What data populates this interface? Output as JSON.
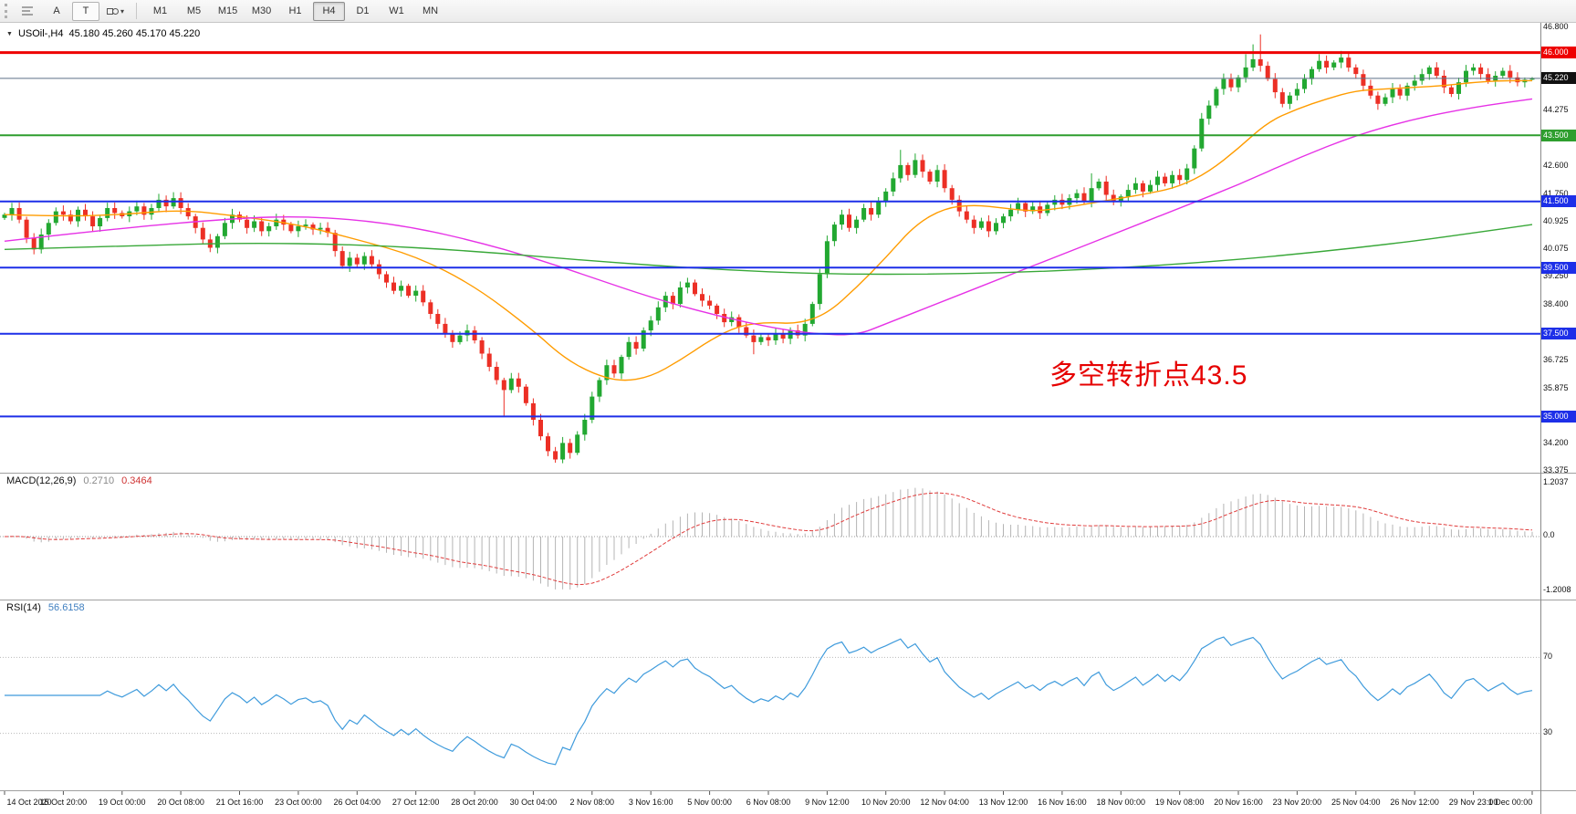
{
  "toolbar": {
    "text_tool_label": "A",
    "text_label_tool_label": "T",
    "timeframes": [
      {
        "label": "M1",
        "active": false
      },
      {
        "label": "M5",
        "active": false
      },
      {
        "label": "M15",
        "active": false
      },
      {
        "label": "M30",
        "active": false
      },
      {
        "label": "H1",
        "active": false
      },
      {
        "label": "H4",
        "active": true
      },
      {
        "label": "D1",
        "active": false
      },
      {
        "label": "W1",
        "active": false
      },
      {
        "label": "MN",
        "active": false
      }
    ]
  },
  "chart": {
    "symbol_tf": "USOil-,H4",
    "ohlc_text": "45.180 45.260 45.170 45.220",
    "annotation": {
      "text": "多空转折点43.5",
      "color": "#e60000"
    },
    "axis_ticks": [
      {
        "v": 46.8,
        "t": "46.800"
      },
      {
        "v": 44.275,
        "t": "44.275"
      },
      {
        "v": 42.6,
        "t": "42.600"
      },
      {
        "v": 41.75,
        "t": "41.750"
      },
      {
        "v": 40.925,
        "t": "40.925"
      },
      {
        "v": 40.075,
        "t": "40.075"
      },
      {
        "v": 39.25,
        "t": "39.250"
      },
      {
        "v": 38.4,
        "t": "38.400"
      },
      {
        "v": 36.725,
        "t": "36.725"
      },
      {
        "v": 35.875,
        "t": "35.875"
      },
      {
        "v": 34.2,
        "t": "34.200"
      },
      {
        "v": 33.375,
        "t": "33.375"
      }
    ]
  },
  "chart_data": {
    "type": "candlestick",
    "symbol": "USOil-",
    "timeframe": "H4",
    "title": "USOil-,H4 45.180 45.260 45.170 45.220",
    "price_range": [
      33.3,
      46.9
    ],
    "open_first": 41.0,
    "wick": 0.12,
    "up_color": "#22a831",
    "down_color": "#ec2f25",
    "closes": [
      41.1,
      41.3,
      40.95,
      40.4,
      40.05,
      40.5,
      40.85,
      41.2,
      41.1,
      40.9,
      41.25,
      41.05,
      40.75,
      41.0,
      41.3,
      41.15,
      41.05,
      41.2,
      41.35,
      41.1,
      41.3,
      41.55,
      41.35,
      41.6,
      41.3,
      41.05,
      40.7,
      40.35,
      40.1,
      40.45,
      40.85,
      41.1,
      40.95,
      40.7,
      40.9,
      40.6,
      40.75,
      40.95,
      40.8,
      40.6,
      40.75,
      40.8,
      40.65,
      40.7,
      40.55,
      40.0,
      39.55,
      39.8,
      39.6,
      39.85,
      39.6,
      39.3,
      39.05,
      38.8,
      38.95,
      38.65,
      38.8,
      38.45,
      38.1,
      37.8,
      37.5,
      37.25,
      37.45,
      37.6,
      37.3,
      36.9,
      36.5,
      36.1,
      35.8,
      36.15,
      35.9,
      35.4,
      34.9,
      34.4,
      33.95,
      33.7,
      34.2,
      33.9,
      34.45,
      34.9,
      35.6,
      36.1,
      36.55,
      36.3,
      36.8,
      37.25,
      37.05,
      37.6,
      37.9,
      38.3,
      38.65,
      38.4,
      38.9,
      39.05,
      38.7,
      38.5,
      38.35,
      38.1,
      37.85,
      38.0,
      37.7,
      37.45,
      37.25,
      37.4,
      37.3,
      37.5,
      37.35,
      37.6,
      37.45,
      37.8,
      38.4,
      39.3,
      40.3,
      40.8,
      41.1,
      40.7,
      40.95,
      41.3,
      41.1,
      41.5,
      41.8,
      42.2,
      42.6,
      42.3,
      42.75,
      42.4,
      42.1,
      42.45,
      41.9,
      41.55,
      41.2,
      40.95,
      40.7,
      40.9,
      40.6,
      40.85,
      41.05,
      41.25,
      41.45,
      41.2,
      41.35,
      41.15,
      41.4,
      41.55,
      41.4,
      41.6,
      41.75,
      41.5,
      41.9,
      42.1,
      41.7,
      41.5,
      41.65,
      41.85,
      42.05,
      41.8,
      42.0,
      42.25,
      42.05,
      42.3,
      42.15,
      42.5,
      43.1,
      44.0,
      44.4,
      44.9,
      45.2,
      44.95,
      45.25,
      45.55,
      45.8,
      45.6,
      45.2,
      44.8,
      44.45,
      44.7,
      44.9,
      45.2,
      45.5,
      45.75,
      45.55,
      45.7,
      45.85,
      45.55,
      45.35,
      45.0,
      44.7,
      44.45,
      44.65,
      44.9,
      44.7,
      45.0,
      45.15,
      45.35,
      45.55,
      45.3,
      44.95,
      44.75,
      45.1,
      45.45,
      45.55,
      45.35,
      45.15,
      45.3,
      45.45,
      45.25,
      45.1,
      45.18,
      45.22
    ],
    "wick_overrides": {
      "4": [
        null,
        39.9
      ],
      "23": [
        41.78,
        null
      ],
      "68": [
        null,
        35.0
      ],
      "75": [
        null,
        33.6
      ],
      "102": [
        null,
        36.88
      ],
      "122": [
        43.06,
        null
      ],
      "124": [
        42.95,
        null
      ],
      "148": [
        42.35,
        null
      ],
      "169": [
        45.95,
        null
      ],
      "170": [
        46.25,
        null
      ],
      "171": [
        46.55,
        null
      ],
      "179": [
        45.95,
        null
      ],
      "182": [
        46.05,
        null
      ],
      "208": [
        45.26,
        45.17
      ]
    },
    "ma_lines": [
      {
        "name": "ma-fast",
        "color": "#ff9c00",
        "points": [
          [
            0,
            41.1
          ],
          [
            8,
            41.05
          ],
          [
            16,
            41.1
          ],
          [
            24,
            41.25
          ],
          [
            32,
            41.05
          ],
          [
            40,
            40.8
          ],
          [
            48,
            40.35
          ],
          [
            56,
            39.85
          ],
          [
            64,
            38.95
          ],
          [
            72,
            37.6
          ],
          [
            76,
            36.8
          ],
          [
            80,
            36.3
          ],
          [
            84,
            36.05
          ],
          [
            88,
            36.2
          ],
          [
            92,
            36.7
          ],
          [
            96,
            37.3
          ],
          [
            100,
            37.75
          ],
          [
            104,
            37.85
          ],
          [
            108,
            37.8
          ],
          [
            112,
            38.1
          ],
          [
            116,
            38.9
          ],
          [
            120,
            39.8
          ],
          [
            124,
            40.8
          ],
          [
            128,
            41.3
          ],
          [
            132,
            41.4
          ],
          [
            136,
            41.3
          ],
          [
            140,
            41.2
          ],
          [
            144,
            41.3
          ],
          [
            148,
            41.45
          ],
          [
            152,
            41.6
          ],
          [
            156,
            41.75
          ],
          [
            160,
            41.95
          ],
          [
            164,
            42.4
          ],
          [
            168,
            43.1
          ],
          [
            172,
            43.9
          ],
          [
            176,
            44.3
          ],
          [
            180,
            44.6
          ],
          [
            184,
            44.85
          ],
          [
            188,
            44.9
          ],
          [
            192,
            44.95
          ],
          [
            196,
            45.0
          ],
          [
            200,
            45.1
          ],
          [
            204,
            45.15
          ],
          [
            208,
            45.15
          ]
        ]
      },
      {
        "name": "ma-mid",
        "color": "#e632e6",
        "points": [
          [
            0,
            40.3
          ],
          [
            16,
            40.7
          ],
          [
            32,
            41.0
          ],
          [
            40,
            41.05
          ],
          [
            48,
            40.95
          ],
          [
            56,
            40.7
          ],
          [
            64,
            40.3
          ],
          [
            72,
            39.8
          ],
          [
            80,
            39.2
          ],
          [
            88,
            38.6
          ],
          [
            96,
            38.1
          ],
          [
            104,
            37.7
          ],
          [
            110,
            37.5
          ],
          [
            116,
            37.45
          ],
          [
            120,
            37.8
          ],
          [
            128,
            38.5
          ],
          [
            136,
            39.2
          ],
          [
            144,
            39.9
          ],
          [
            152,
            40.6
          ],
          [
            160,
            41.3
          ],
          [
            168,
            42.0
          ],
          [
            176,
            42.8
          ],
          [
            184,
            43.5
          ],
          [
            192,
            44.0
          ],
          [
            200,
            44.35
          ],
          [
            208,
            44.6
          ]
        ]
      },
      {
        "name": "ma-slow",
        "color": "#39a839",
        "points": [
          [
            0,
            40.05
          ],
          [
            16,
            40.15
          ],
          [
            32,
            40.25
          ],
          [
            48,
            40.2
          ],
          [
            64,
            40.0
          ],
          [
            80,
            39.7
          ],
          [
            96,
            39.45
          ],
          [
            112,
            39.3
          ],
          [
            128,
            39.3
          ],
          [
            144,
            39.4
          ],
          [
            160,
            39.6
          ],
          [
            176,
            39.9
          ],
          [
            192,
            40.3
          ],
          [
            200,
            40.55
          ],
          [
            208,
            40.8
          ]
        ]
      }
    ],
    "h_levels": [
      {
        "price": 46.0,
        "label": "46.000",
        "color": "#ee0000",
        "width": 3
      },
      {
        "price": 43.5,
        "label": "43.500",
        "color": "#2e9e2e",
        "width": 2
      },
      {
        "price": 41.5,
        "label": "41.500",
        "color": "#1d2fe8",
        "width": 2
      },
      {
        "price": 39.5,
        "label": "39.500",
        "color": "#1d2fe8",
        "width": 2
      },
      {
        "price": 37.5,
        "label": "37.500",
        "color": "#1d2fe8",
        "width": 2
      },
      {
        "price": 35.0,
        "label": "35.000",
        "color": "#1d2fe8",
        "width": 2
      }
    ],
    "bid": {
      "price": 45.22,
      "label": "45.220",
      "line_color": "#5d7186",
      "tag_bg": "#111111"
    },
    "x_labels": [
      "14 Oct 2020",
      "15 Oct 20:00",
      "19 Oct 00:00",
      "20 Oct 08:00",
      "21 Oct 16:00",
      "23 Oct 00:00",
      "26 Oct 04:00",
      "27 Oct 12:00",
      "28 Oct 20:00",
      "30 Oct 04:00",
      "2 Nov 08:00",
      "3 Nov 16:00",
      "5 Nov 00:00",
      "6 Nov 08:00",
      "9 Nov 12:00",
      "10 Nov 20:00",
      "12 Nov 04:00",
      "13 Nov 12:00",
      "16 Nov 16:00",
      "18 Nov 00:00",
      "19 Nov 08:00",
      "20 Nov 16:00",
      "23 Nov 20:00",
      "25 Nov 04:00",
      "26 Nov 12:00",
      "29 Nov 23:00",
      "1 Dec 00:00"
    ],
    "label_step": 8,
    "macd": {
      "label": "MACD(12,26,9)",
      "value_main": "0.2710",
      "value_signal": "0.3464",
      "axis": [
        "1.2037",
        "0.0",
        "-1.2008"
      ],
      "params": [
        12,
        26,
        9
      ],
      "hist_color": "#b4b4b4",
      "signal_color": "#e03c3c"
    },
    "rsi": {
      "label": "RSI(14)",
      "value": "56.6158",
      "axis": [
        "70",
        "30"
      ],
      "levels": [
        70,
        30
      ],
      "period": 14,
      "color": "#3f9bdc"
    }
  }
}
